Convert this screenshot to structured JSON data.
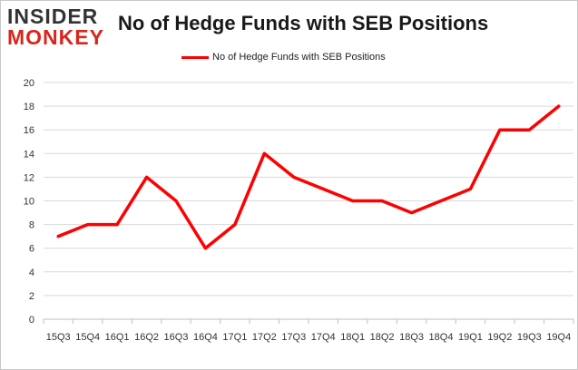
{
  "logo": {
    "top": "INSIDER",
    "bottom": "MONKEY"
  },
  "colors": {
    "series": "#ff0000",
    "grid": "#d9d9d9",
    "axis": "#bfbfbf",
    "logo_red": "#d9261c"
  },
  "chart_data": {
    "type": "line",
    "title": "No of Hedge Funds with SEB Positions",
    "xlabel": "",
    "ylabel": "",
    "categories": [
      "15Q3",
      "15Q4",
      "16Q1",
      "16Q2",
      "16Q3",
      "16Q4",
      "17Q1",
      "17Q2",
      "17Q3",
      "17Q4",
      "18Q1",
      "18Q2",
      "18Q3",
      "18Q4",
      "19Q1",
      "19Q2",
      "19Q3",
      "19Q4"
    ],
    "series": [
      {
        "name": "No of Hedge Funds with SEB Positions",
        "values": [
          7,
          8,
          8,
          12,
          10,
          6,
          8,
          14,
          12,
          11,
          10,
          10,
          9,
          10,
          11,
          16,
          16,
          18
        ]
      }
    ],
    "ylim": [
      0,
      20
    ],
    "yticks": [
      "0",
      "2",
      "4",
      "6",
      "8",
      "10",
      "12",
      "14",
      "16",
      "18",
      "20"
    ],
    "grid": true,
    "legend_position": "top-center"
  }
}
